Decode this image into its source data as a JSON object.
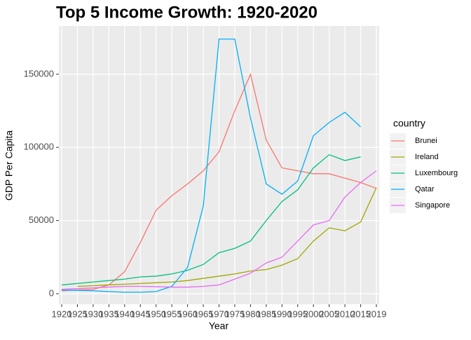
{
  "chart_data": {
    "type": "line",
    "title": "Top 5 Income Growth: 1920-2020",
    "x_label": "Year",
    "y_label": "GDP Per Capita",
    "legend_title": "country",
    "categories": [
      "1920",
      "1925",
      "1930",
      "1935",
      "1940",
      "1945",
      "1950",
      "1955",
      "1960",
      "1965",
      "1970",
      "1975",
      "1980",
      "1985",
      "1990",
      "1995",
      "2000",
      "2005",
      "2010",
      "2015",
      "2019"
    ],
    "series": [
      {
        "name": "Brunei",
        "color": "#F8766D",
        "values": [
          2000,
          2500,
          3000,
          6000,
          15000,
          35000,
          57000,
          67000,
          75000,
          84000,
          97000,
          125000,
          150000,
          105000,
          86000,
          84000,
          82000,
          82000,
          79000,
          76000,
          72000
        ]
      },
      {
        "name": "Ireland",
        "color": "#A3A500",
        "values": [
          null,
          5000,
          5500,
          6000,
          6500,
          7000,
          7500,
          8000,
          9000,
          10500,
          12000,
          13500,
          15500,
          16500,
          19500,
          24000,
          36000,
          45000,
          43000,
          49000,
          72500
        ]
      },
      {
        "name": "Luxembourg",
        "color": "#00BF7D",
        "values": [
          6000,
          7000,
          8000,
          9000,
          10000,
          11500,
          12000,
          13500,
          16000,
          20000,
          28000,
          31000,
          36000,
          50000,
          63000,
          71000,
          86000,
          95000,
          91000,
          93500,
          null
        ]
      },
      {
        "name": "Qatar",
        "color": "#00B0F6",
        "values": [
          2500,
          2300,
          2000,
          1500,
          1000,
          1000,
          1500,
          5000,
          18000,
          60000,
          174000,
          174000,
          120000,
          75000,
          68000,
          77000,
          108000,
          117000,
          124000,
          114000,
          null
        ]
      },
      {
        "name": "Singapore",
        "color": "#E76BF3",
        "values": [
          3000,
          3500,
          4000,
          4500,
          5000,
          5000,
          4800,
          4500,
          4500,
          5000,
          6000,
          10000,
          14000,
          21000,
          25000,
          36000,
          47000,
          50000,
          66000,
          76000,
          84000
        ]
      }
    ],
    "ylim": [
      -7200,
      183000
    ],
    "yticks": [
      0,
      50000,
      100000,
      150000
    ],
    "grid": true
  }
}
